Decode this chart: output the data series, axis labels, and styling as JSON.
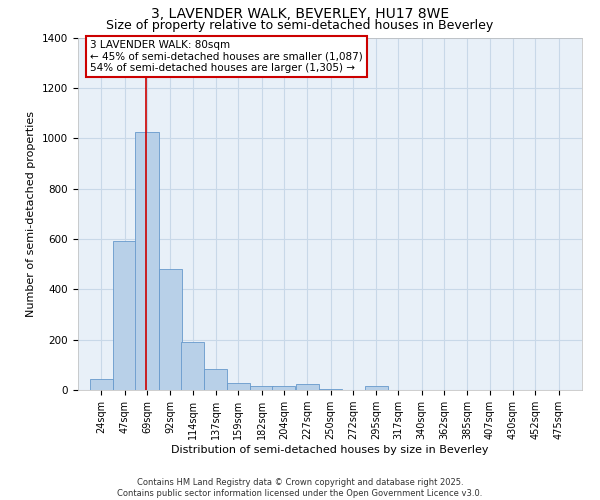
{
  "title_line1": "3, LAVENDER WALK, BEVERLEY, HU17 8WE",
  "title_line2": "Size of property relative to semi-detached houses in Beverley",
  "xlabel": "Distribution of semi-detached houses by size in Beverley",
  "ylabel": "Number of semi-detached properties",
  "bin_edges": [
    24,
    47,
    69,
    92,
    114,
    137,
    159,
    182,
    204,
    227,
    250,
    272,
    295,
    317,
    340,
    362,
    385,
    407,
    430,
    452,
    475
  ],
  "bar_heights": [
    45,
    590,
    1025,
    480,
    190,
    85,
    28,
    15,
    15,
    25,
    5,
    0,
    15,
    0,
    0,
    0,
    0,
    0,
    0,
    0
  ],
  "bar_color": "#b8d0e8",
  "bar_edge_color": "#6699cc",
  "grid_color": "#c8d8e8",
  "background_color": "#e8f0f8",
  "property_size": 80,
  "red_line_color": "#cc0000",
  "annotation_text": "3 LAVENDER WALK: 80sqm\n← 45% of semi-detached houses are smaller (1,087)\n54% of semi-detached houses are larger (1,305) →",
  "annotation_box_color": "#cc0000",
  "ylim": [
    0,
    1400
  ],
  "yticks": [
    0,
    200,
    400,
    600,
    800,
    1000,
    1200,
    1400
  ],
  "copyright_text": "Contains HM Land Registry data © Crown copyright and database right 2025.\nContains public sector information licensed under the Open Government Licence v3.0.",
  "title_fontsize": 10,
  "subtitle_fontsize": 9,
  "axis_label_fontsize": 8,
  "tick_fontsize": 7,
  "annotation_fontsize": 7.5,
  "copyright_fontsize": 6
}
